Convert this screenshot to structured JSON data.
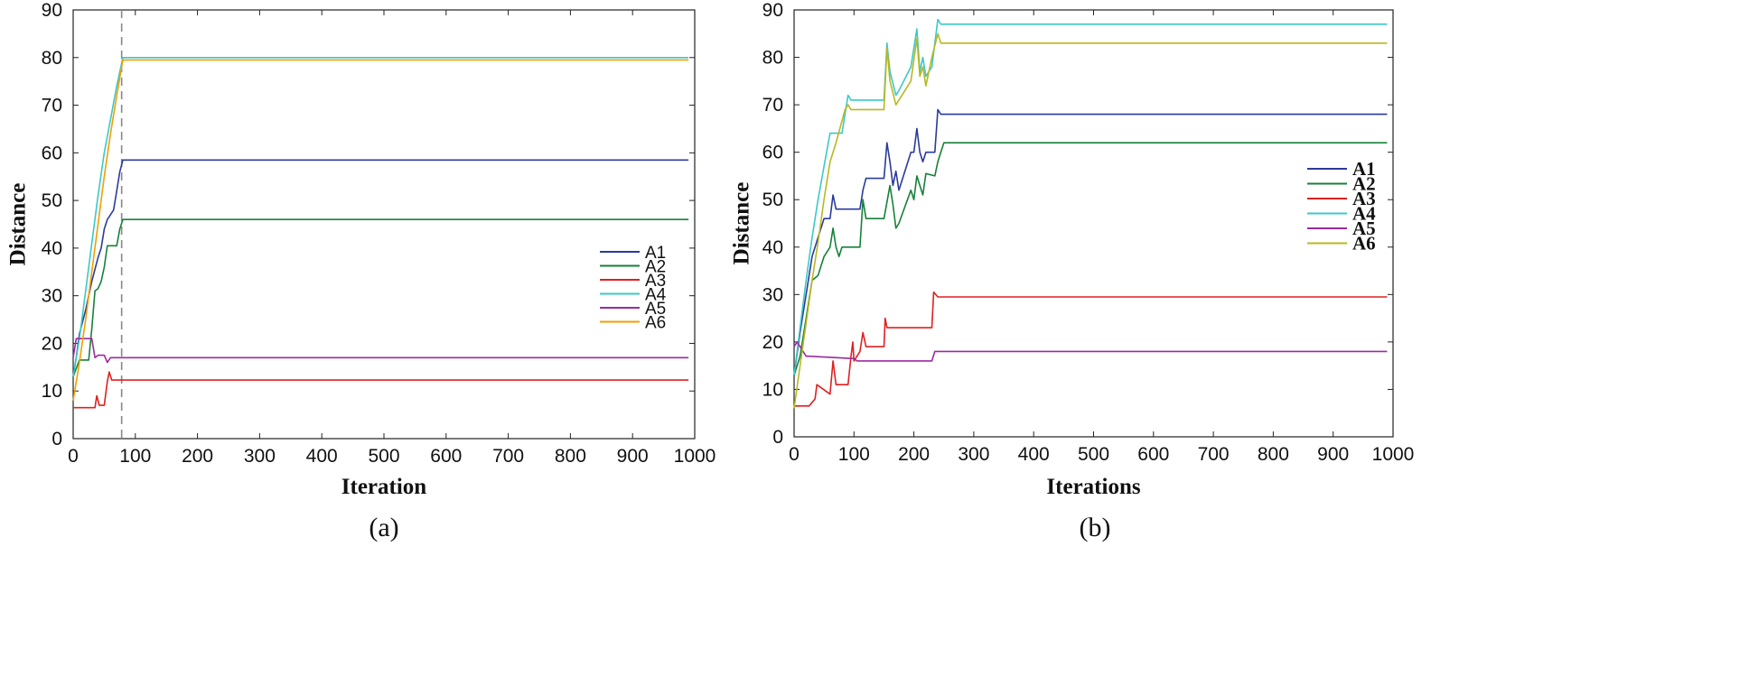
{
  "chart_data": [
    {
      "type": "line",
      "caption": "(a)",
      "title": "",
      "xlabel": "Iteration",
      "ylabel": "Distance",
      "xlim": [
        0,
        1000
      ],
      "ylim": [
        0,
        90
      ],
      "xticks": [
        0,
        100,
        200,
        300,
        400,
        500,
        600,
        700,
        800,
        900,
        1000
      ],
      "yticks": [
        0,
        10,
        20,
        30,
        40,
        50,
        60,
        70,
        80,
        90
      ],
      "grid": false,
      "legend_position": "center-right",
      "legend_style": "regular",
      "vline": {
        "x": 78,
        "style": "dashed"
      },
      "series": [
        {
          "name": "A1",
          "color": "#2a3b9c",
          "x": [
            0,
            5,
            10,
            20,
            30,
            40,
            45,
            50,
            55,
            60,
            65,
            70,
            75,
            80,
            990
          ],
          "y": [
            13,
            17,
            22,
            27,
            33,
            38,
            40,
            44,
            46,
            47,
            48,
            52,
            56,
            58.5,
            58.5
          ]
        },
        {
          "name": "A2",
          "color": "#17813a",
          "x": [
            0,
            10,
            25,
            30,
            35,
            40,
            45,
            50,
            55,
            60,
            65,
            70,
            75,
            80,
            990
          ],
          "y": [
            13,
            16.5,
            16.5,
            23,
            31,
            31.5,
            33,
            36,
            40.5,
            40.5,
            40.5,
            40.5,
            44,
            46,
            46
          ]
        },
        {
          "name": "A3",
          "color": "#e02020",
          "x": [
            0,
            35,
            38,
            42,
            50,
            55,
            58,
            62,
            990
          ],
          "y": [
            6.5,
            6.5,
            9,
            7,
            7,
            12,
            14,
            12.3,
            12.3
          ]
        },
        {
          "name": "A4",
          "color": "#3cc8c8",
          "x": [
            0,
            10,
            20,
            30,
            40,
            50,
            60,
            70,
            80,
            990
          ],
          "y": [
            13,
            21,
            31,
            41,
            51,
            60,
            67,
            74,
            80,
            80
          ]
        },
        {
          "name": "A5",
          "color": "#9b2aa0",
          "x": [
            0,
            5,
            10,
            20,
            30,
            35,
            40,
            50,
            55,
            60,
            65,
            990
          ],
          "y": [
            17,
            21,
            21,
            21,
            21,
            17,
            17.5,
            17.5,
            16,
            17,
            17,
            17
          ]
        },
        {
          "name": "A6",
          "color": "#f0a000",
          "x": [
            0,
            10,
            20,
            30,
            40,
            50,
            60,
            70,
            80,
            990
          ],
          "y": [
            8,
            16,
            25,
            35,
            45,
            55,
            64,
            72,
            79.5,
            79.5
          ]
        }
      ]
    },
    {
      "type": "line",
      "caption": "(b)",
      "title": "",
      "xlabel": "Iterations",
      "ylabel": "Distance",
      "xlim": [
        0,
        1000
      ],
      "ylim": [
        0,
        90
      ],
      "xticks": [
        0,
        100,
        200,
        300,
        400,
        500,
        600,
        700,
        800,
        900,
        1000
      ],
      "yticks": [
        0,
        10,
        20,
        30,
        40,
        50,
        60,
        70,
        80,
        90
      ],
      "grid": false,
      "legend_position": "right",
      "legend_style": "bold",
      "series": [
        {
          "name": "A1",
          "color": "#2a3b9c",
          "x": [
            0,
            10,
            20,
            30,
            40,
            50,
            60,
            65,
            70,
            75,
            80,
            110,
            115,
            120,
            150,
            155,
            160,
            165,
            170,
            175,
            195,
            200,
            205,
            210,
            215,
            220,
            235,
            240,
            245,
            990
          ],
          "y": [
            13,
            22,
            30,
            38,
            42,
            46,
            46,
            51,
            48,
            48,
            48,
            48,
            52,
            54.5,
            54.5,
            62,
            58,
            53,
            56,
            52,
            60,
            60,
            65,
            60,
            58,
            60,
            60,
            69,
            68,
            68
          ]
        },
        {
          "name": "A2",
          "color": "#17813a",
          "x": [
            0,
            10,
            20,
            30,
            40,
            50,
            60,
            65,
            70,
            75,
            80,
            110,
            115,
            120,
            150,
            160,
            165,
            170,
            175,
            195,
            200,
            205,
            210,
            215,
            220,
            235,
            240,
            245,
            250,
            990
          ],
          "y": [
            13,
            17,
            25,
            33,
            34,
            38,
            40,
            44,
            40,
            38,
            40,
            40,
            50,
            46,
            46,
            53,
            49,
            44,
            45,
            52,
            50,
            55,
            53,
            51,
            55.5,
            55,
            58,
            60,
            62,
            62
          ]
        },
        {
          "name": "A3",
          "color": "#e02020",
          "x": [
            0,
            25,
            35,
            38,
            60,
            65,
            70,
            75,
            90,
            95,
            98,
            100,
            110,
            115,
            120,
            150,
            152,
            155,
            230,
            233,
            240,
            990
          ],
          "y": [
            6.5,
            6.5,
            8,
            11,
            9,
            16,
            11,
            11,
            11,
            17,
            20,
            16,
            18,
            22,
            19,
            19,
            25,
            23,
            23,
            30.5,
            29.5,
            29.5
          ]
        },
        {
          "name": "A4",
          "color": "#3cc8c8",
          "x": [
            0,
            10,
            20,
            30,
            40,
            50,
            60,
            70,
            80,
            90,
            95,
            100,
            150,
            155,
            160,
            170,
            175,
            195,
            205,
            210,
            215,
            220,
            230,
            240,
            245,
            990
          ],
          "y": [
            13,
            23,
            33,
            42,
            50,
            57,
            64,
            64,
            64,
            72,
            71,
            71,
            71,
            83,
            77,
            72,
            73,
            78,
            86,
            77,
            80,
            76,
            78,
            88,
            87,
            87
          ]
        },
        {
          "name": "A5",
          "color": "#9b2aa0",
          "x": [
            0,
            5,
            20,
            25,
            100,
            105,
            230,
            235,
            990
          ],
          "y": [
            19,
            20,
            17,
            17,
            16.5,
            16,
            16,
            18,
            18
          ]
        },
        {
          "name": "A6",
          "color": "#b8b820",
          "x": [
            0,
            10,
            20,
            30,
            40,
            50,
            60,
            70,
            85,
            90,
            95,
            150,
            155,
            160,
            170,
            175,
            195,
            205,
            210,
            215,
            220,
            230,
            240,
            245,
            990
          ],
          "y": [
            6,
            15,
            24,
            33,
            41,
            50,
            58,
            62,
            69,
            70,
            69,
            69,
            82,
            75,
            70,
            71,
            75,
            84,
            76,
            78,
            74,
            80,
            85,
            83,
            83
          ]
        }
      ]
    }
  ]
}
